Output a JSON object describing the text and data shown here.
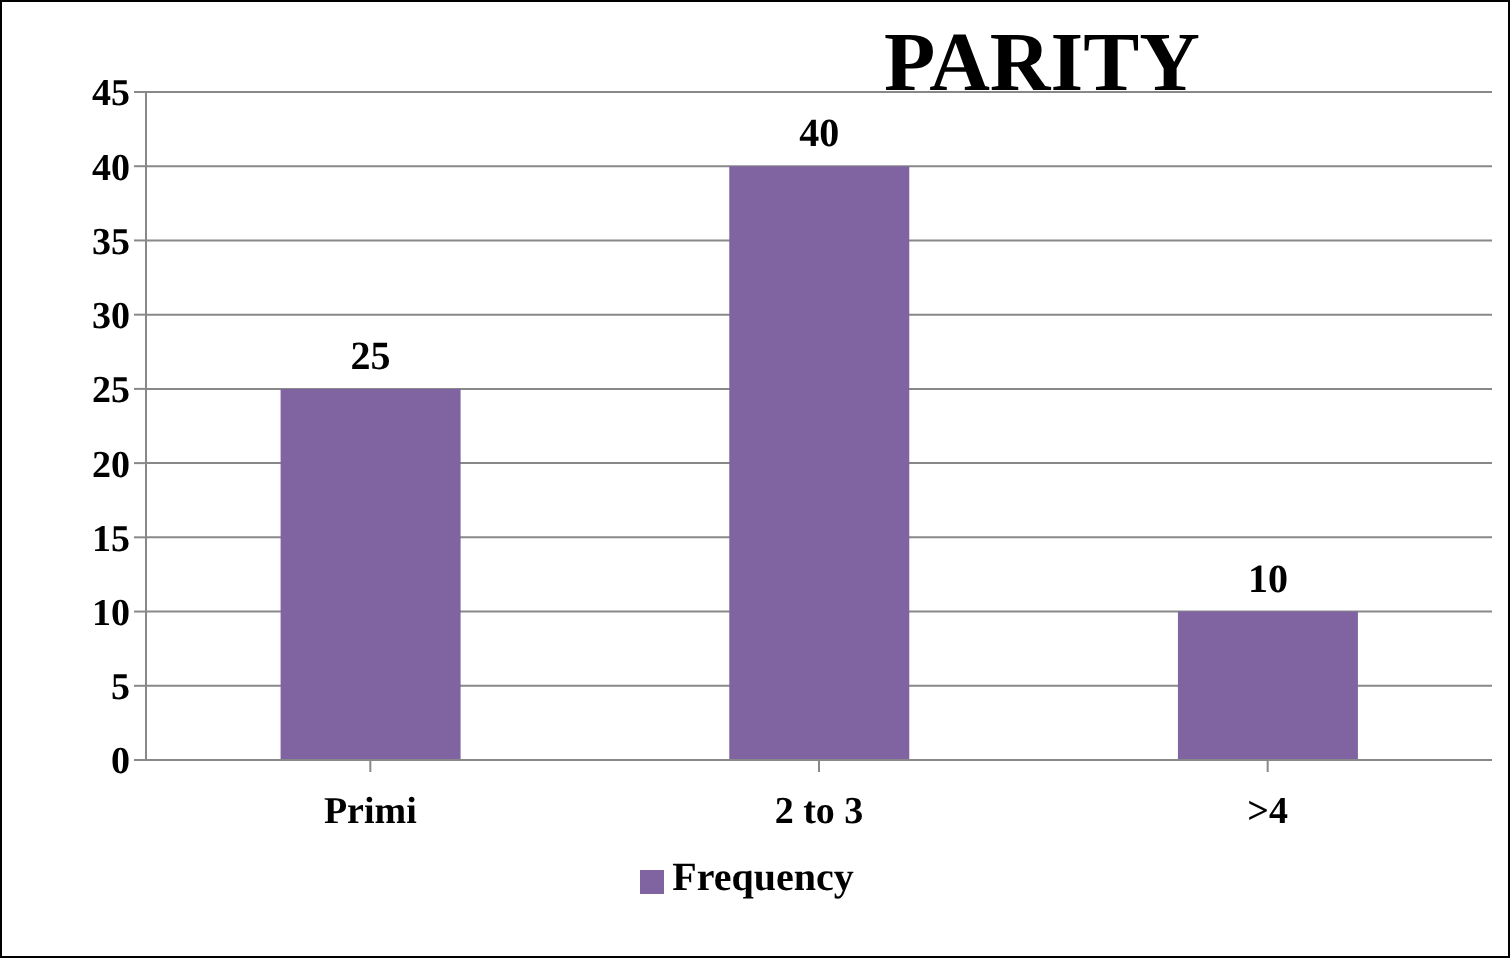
{
  "chart_data": {
    "type": "bar",
    "title": "PARITY",
    "categories": [
      "Primi",
      "2 to 3",
      ">4"
    ],
    "series": [
      {
        "name": "Frequency",
        "color": "#8064a2",
        "values": [
          25,
          40,
          10
        ]
      }
    ],
    "ylim": [
      0,
      45
    ],
    "yticks": [
      0,
      5,
      10,
      15,
      20,
      25,
      30,
      35,
      40,
      45
    ],
    "grid": "y",
    "legend": "bottom",
    "data_labels": true
  }
}
